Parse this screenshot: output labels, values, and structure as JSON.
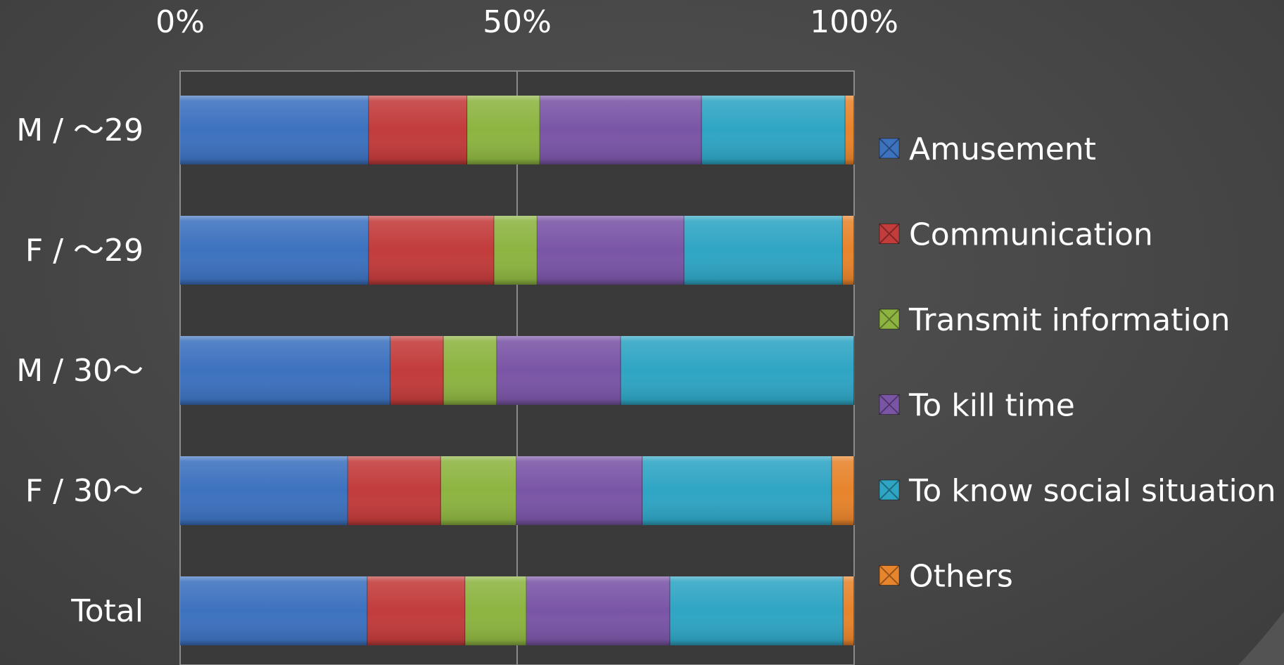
{
  "chart_data": {
    "type": "bar",
    "orientation": "horizontal",
    "stacked": "percent",
    "title": "",
    "xlabel": "",
    "ylabel": "",
    "xlim": [
      0,
      100
    ],
    "x_ticks": [
      "0%",
      "50%",
      "100%"
    ],
    "x_axis_position": "top",
    "grid": true,
    "legend_position": "right",
    "categories": [
      "M / 〜29",
      "F / 〜29",
      "M / 30〜",
      "F / 30〜",
      "Total"
    ],
    "series": [
      {
        "name": "Amusement",
        "color": "#3d72bf",
        "values": [
          28.0,
          28.0,
          31.2,
          24.9,
          27.8
        ]
      },
      {
        "name": "Communication",
        "color": "#c23c3b",
        "values": [
          14.6,
          18.6,
          7.9,
          13.8,
          14.5
        ]
      },
      {
        "name": "Transmit information",
        "color": "#8db441",
        "values": [
          10.8,
          6.4,
          7.9,
          11.2,
          9.1
        ]
      },
      {
        "name": "To kill time",
        "color": "#7a55a6",
        "values": [
          24.0,
          21.8,
          18.4,
          18.7,
          21.3
        ]
      },
      {
        "name": "To know social situation",
        "color": "#2fa5c4",
        "values": [
          21.3,
          23.5,
          34.6,
          28.1,
          25.7
        ]
      },
      {
        "name": "Others",
        "color": "#e7842c",
        "values": [
          1.3,
          1.7,
          0.0,
          3.3,
          1.6
        ]
      }
    ]
  }
}
